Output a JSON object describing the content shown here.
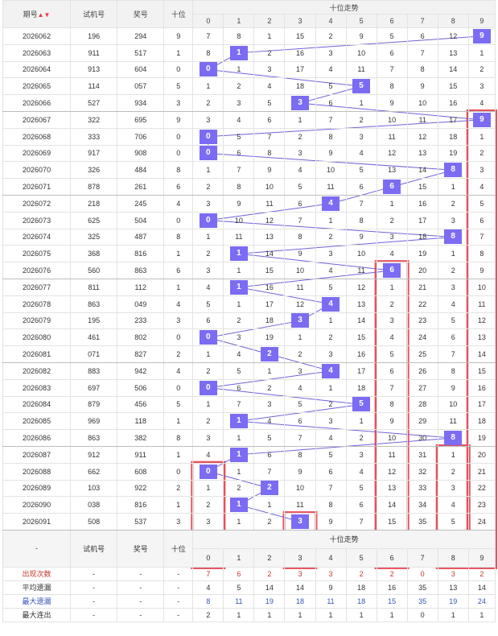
{
  "header": {
    "period": "期号",
    "trial": "试机号",
    "prize": "奖号",
    "tens": "十位",
    "trend": "十位走势",
    "digits": [
      "0",
      "1",
      "2",
      "3",
      "4",
      "5",
      "6",
      "7",
      "8",
      "9"
    ],
    "sort_icon": "sort-arrows-icon"
  },
  "rows": [
    {
      "period": "2026062",
      "trial": "196",
      "prize": "294",
      "tens": "9",
      "cells": [
        "7",
        "8",
        "1",
        "15",
        "2",
        "9",
        "5",
        "6",
        "12",
        "9"
      ]
    },
    {
      "period": "2026063",
      "trial": "911",
      "prize": "517",
      "tens": "1",
      "cells": [
        "8",
        "1",
        "2",
        "16",
        "3",
        "10",
        "6",
        "7",
        "13",
        "1"
      ]
    },
    {
      "period": "2026064",
      "trial": "913",
      "prize": "604",
      "tens": "0",
      "cells": [
        "0",
        "1",
        "3",
        "17",
        "4",
        "11",
        "7",
        "8",
        "14",
        "2"
      ]
    },
    {
      "period": "2026065",
      "trial": "114",
      "prize": "057",
      "tens": "5",
      "cells": [
        "1",
        "2",
        "4",
        "18",
        "5",
        "5",
        "8",
        "9",
        "15",
        "3"
      ]
    },
    {
      "period": "2026066",
      "trial": "527",
      "prize": "934",
      "tens": "3",
      "cells": [
        "2",
        "3",
        "5",
        "3",
        "6",
        "1",
        "9",
        "10",
        "16",
        "4"
      ]
    },
    {
      "period": "2026067",
      "trial": "322",
      "prize": "695",
      "tens": "9",
      "cells": [
        "3",
        "4",
        "6",
        "1",
        "7",
        "2",
        "10",
        "11",
        "17",
        "9"
      ]
    },
    {
      "period": "2026068",
      "trial": "333",
      "prize": "706",
      "tens": "0",
      "cells": [
        "0",
        "5",
        "7",
        "2",
        "8",
        "3",
        "11",
        "12",
        "18",
        "1"
      ]
    },
    {
      "period": "2026069",
      "trial": "917",
      "prize": "908",
      "tens": "0",
      "cells": [
        "0",
        "6",
        "8",
        "3",
        "9",
        "4",
        "12",
        "13",
        "19",
        "2"
      ]
    },
    {
      "period": "2026070",
      "trial": "326",
      "prize": "484",
      "tens": "8",
      "cells": [
        "1",
        "7",
        "9",
        "4",
        "10",
        "5",
        "13",
        "14",
        "8",
        "3"
      ]
    },
    {
      "period": "2026071",
      "trial": "878",
      "prize": "261",
      "tens": "6",
      "cells": [
        "2",
        "8",
        "10",
        "5",
        "11",
        "6",
        "6",
        "15",
        "1",
        "4"
      ]
    },
    {
      "period": "2026072",
      "trial": "218",
      "prize": "245",
      "tens": "4",
      "cells": [
        "3",
        "9",
        "11",
        "6",
        "4",
        "7",
        "1",
        "16",
        "2",
        "5"
      ]
    },
    {
      "period": "2026073",
      "trial": "625",
      "prize": "504",
      "tens": "0",
      "cells": [
        "0",
        "10",
        "12",
        "7",
        "1",
        "8",
        "2",
        "17",
        "3",
        "6"
      ]
    },
    {
      "period": "2026074",
      "trial": "325",
      "prize": "487",
      "tens": "8",
      "cells": [
        "1",
        "11",
        "13",
        "8",
        "2",
        "9",
        "3",
        "18",
        "8",
        "7"
      ]
    },
    {
      "period": "2026075",
      "trial": "368",
      "prize": "816",
      "tens": "1",
      "cells": [
        "2",
        "1",
        "14",
        "9",
        "3",
        "10",
        "4",
        "19",
        "1",
        "8"
      ]
    },
    {
      "period": "2026076",
      "trial": "560",
      "prize": "863",
      "tens": "6",
      "cells": [
        "3",
        "1",
        "15",
        "10",
        "4",
        "11",
        "6",
        "20",
        "2",
        "9"
      ]
    },
    {
      "period": "2026077",
      "trial": "811",
      "prize": "112",
      "tens": "1",
      "cells": [
        "4",
        "1",
        "16",
        "11",
        "5",
        "12",
        "1",
        "21",
        "3",
        "10"
      ]
    },
    {
      "period": "2026078",
      "trial": "863",
      "prize": "049",
      "tens": "4",
      "cells": [
        "5",
        "1",
        "17",
        "12",
        "4",
        "13",
        "2",
        "22",
        "4",
        "11"
      ]
    },
    {
      "period": "2026079",
      "trial": "195",
      "prize": "233",
      "tens": "3",
      "cells": [
        "6",
        "2",
        "18",
        "3",
        "1",
        "14",
        "3",
        "23",
        "5",
        "12"
      ]
    },
    {
      "period": "2026080",
      "trial": "461",
      "prize": "802",
      "tens": "0",
      "cells": [
        "0",
        "3",
        "19",
        "1",
        "2",
        "15",
        "4",
        "24",
        "6",
        "13"
      ]
    },
    {
      "period": "2026081",
      "trial": "071",
      "prize": "827",
      "tens": "2",
      "cells": [
        "1",
        "4",
        "2",
        "2",
        "3",
        "16",
        "5",
        "25",
        "7",
        "14"
      ]
    },
    {
      "period": "2026082",
      "trial": "883",
      "prize": "942",
      "tens": "4",
      "cells": [
        "2",
        "5",
        "1",
        "3",
        "4",
        "17",
        "6",
        "26",
        "8",
        "15"
      ]
    },
    {
      "period": "2026083",
      "trial": "697",
      "prize": "506",
      "tens": "0",
      "cells": [
        "0",
        "6",
        "2",
        "4",
        "1",
        "18",
        "7",
        "27",
        "9",
        "16"
      ]
    },
    {
      "period": "2026084",
      "trial": "879",
      "prize": "456",
      "tens": "5",
      "cells": [
        "1",
        "7",
        "3",
        "5",
        "2",
        "5",
        "8",
        "28",
        "10",
        "17"
      ]
    },
    {
      "period": "2026085",
      "trial": "969",
      "prize": "118",
      "tens": "1",
      "cells": [
        "2",
        "1",
        "4",
        "6",
        "3",
        "1",
        "9",
        "29",
        "11",
        "18"
      ]
    },
    {
      "period": "2026086",
      "trial": "863",
      "prize": "382",
      "tens": "8",
      "cells": [
        "3",
        "1",
        "5",
        "7",
        "4",
        "2",
        "10",
        "30",
        "8",
        "19"
      ]
    },
    {
      "period": "2026087",
      "trial": "912",
      "prize": "911",
      "tens": "1",
      "cells": [
        "4",
        "1",
        "6",
        "8",
        "5",
        "3",
        "11",
        "31",
        "1",
        "20"
      ]
    },
    {
      "period": "2026088",
      "trial": "662",
      "prize": "608",
      "tens": "0",
      "cells": [
        "0",
        "1",
        "7",
        "9",
        "6",
        "4",
        "12",
        "32",
        "2",
        "21"
      ]
    },
    {
      "period": "2026089",
      "trial": "103",
      "prize": "922",
      "tens": "2",
      "cells": [
        "1",
        "2",
        "2",
        "10",
        "7",
        "5",
        "13",
        "33",
        "3",
        "22"
      ]
    },
    {
      "period": "2026090",
      "trial": "038",
      "prize": "816",
      "tens": "1",
      "cells": [
        "2",
        "1",
        "1",
        "11",
        "8",
        "6",
        "14",
        "34",
        "4",
        "23"
      ]
    },
    {
      "period": "2026091",
      "trial": "508",
      "prize": "537",
      "tens": "3",
      "cells": [
        "3",
        "1",
        "2",
        "3",
        "9",
        "7",
        "15",
        "35",
        "5",
        "24"
      ]
    }
  ],
  "footer": {
    "dash": "-",
    "trial": "试机号",
    "prize": "奖号",
    "tens": "十位",
    "trend": "十位走势"
  },
  "stats": [
    {
      "label": "出现次数",
      "values": [
        "7",
        "6",
        "2",
        "3",
        "3",
        "2",
        "2",
        "0",
        "3",
        "2"
      ]
    },
    {
      "label": "平均遗漏",
      "values": [
        "4",
        "5",
        "14",
        "14",
        "9",
        "18",
        "16",
        "35",
        "13",
        "14"
      ]
    },
    {
      "label": "最大遗漏",
      "values": [
        "8",
        "11",
        "19",
        "18",
        "11",
        "18",
        "15",
        "35",
        "19",
        "24"
      ]
    },
    {
      "label": "最大连出",
      "values": [
        "2",
        "1",
        "1",
        "1",
        "1",
        "1",
        "1",
        "0",
        "1",
        "1"
      ]
    }
  ],
  "colors": {
    "ball": "#7b6cf3",
    "line": "#6f63d8",
    "highlight_box": "#e8505b"
  }
}
